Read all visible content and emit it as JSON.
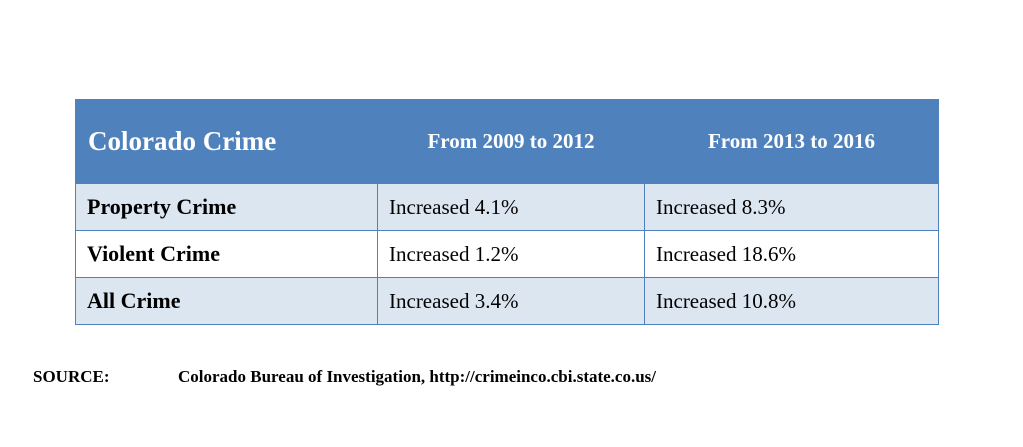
{
  "table": {
    "headers": [
      "Colorado Crime",
      "From 2009 to 2012",
      "From 2013 to 2016"
    ],
    "rows": [
      [
        "Property Crime",
        "Increased 4.1%",
        "Increased 8.3%"
      ],
      [
        "Violent Crime",
        "Increased 1.2%",
        "Increased 18.6%"
      ],
      [
        "All Crime",
        "Increased 3.4%",
        "Increased 10.8%"
      ]
    ]
  },
  "source": {
    "label": "SOURCE:",
    "text": "Colorado Bureau of Investigation, http://crimeinco.cbi.state.co.us/"
  },
  "colors": {
    "header_bg": "#4f81bd",
    "shaded_row_bg": "#dce6f1",
    "border": "#4f81bd"
  }
}
